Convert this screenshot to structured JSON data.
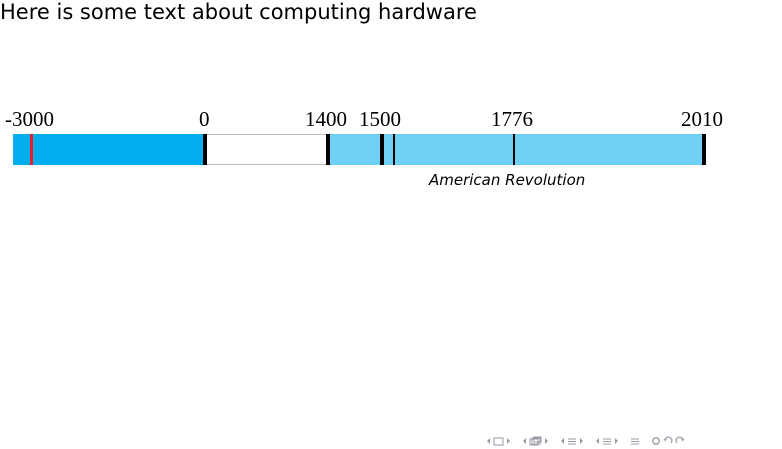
{
  "slide": {
    "title": "Here is some text about computing hardware"
  },
  "timeline": {
    "tick_labels": [
      "-3000",
      "0",
      "1400",
      "1500",
      "1776",
      "2010"
    ],
    "annotation": "American Revolution",
    "colors": {
      "ancient": "#00aeef",
      "middle": "#ffffff",
      "modern": "#6fd0f6",
      "red_marker": "#ee1c24",
      "marker": "#000000"
    }
  },
  "navigation": {
    "icons": [
      "frame-prev-icon",
      "frame-icon",
      "frame-next-icon",
      "subsection-prev-icon",
      "subsection-icon",
      "subsection-next-icon",
      "section-prev-icon",
      "section-icon",
      "section-next-icon",
      "slide-prev-icon",
      "slide-icon",
      "slide-next-icon",
      "align-icon",
      "search-icon",
      "back-icon",
      "forward-icon"
    ]
  }
}
